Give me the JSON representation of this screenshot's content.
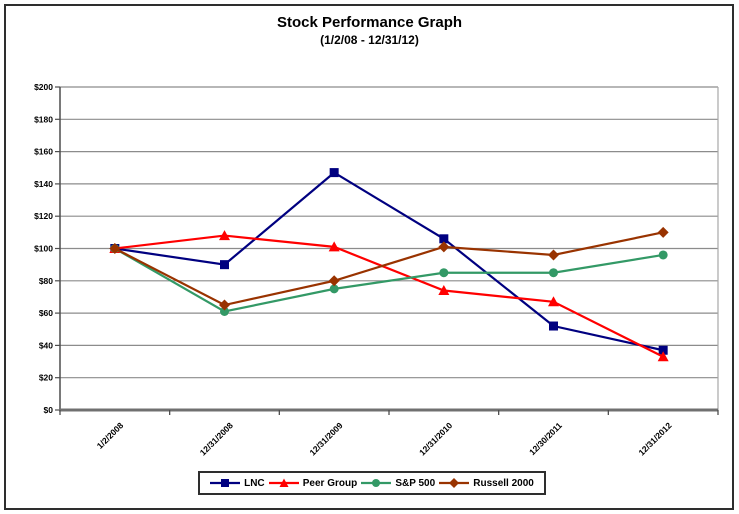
{
  "chart_data": {
    "type": "line",
    "title": "Stock Performance Graph",
    "subtitle": "(1/2/08 - 12/31/12)",
    "categories": [
      "1/2/2008",
      "12/31/2008",
      "12/31/2009",
      "12/31/2010",
      "12/30/2011",
      "12/31/2012"
    ],
    "series": [
      {
        "name": "LNC",
        "color": "#000080",
        "marker": "square",
        "values": [
          100,
          90,
          147,
          106,
          52,
          37
        ]
      },
      {
        "name": "Peer Group",
        "color": "#FF0000",
        "marker": "triangle",
        "values": [
          100,
          108,
          101,
          74,
          67,
          33
        ]
      },
      {
        "name": "S&P 500",
        "color": "#339966",
        "marker": "circle",
        "values": [
          100,
          61,
          75,
          85,
          85,
          96
        ]
      },
      {
        "name": "Russell 2000",
        "color": "#993300",
        "marker": "diamond",
        "values": [
          100,
          65,
          80,
          101,
          96,
          110
        ]
      }
    ],
    "y_axis": {
      "min": 0,
      "max": 200,
      "step": 20,
      "tick_labels": [
        "$0",
        "$20",
        "$40",
        "$60",
        "$80",
        "$100",
        "$120",
        "$140",
        "$160",
        "$180",
        "$200"
      ]
    },
    "x_axis": {
      "label_rotation_deg": -45
    },
    "grid": true,
    "legend_position": "bottom",
    "colors": {
      "gridline": "#8c8c8c",
      "x_axis_line": "#707070",
      "y_axis_line": "#4d4d4d",
      "plot_right_border": "#a8a8a8",
      "text": "#000000",
      "frame_border": "#2e2e2e"
    }
  }
}
